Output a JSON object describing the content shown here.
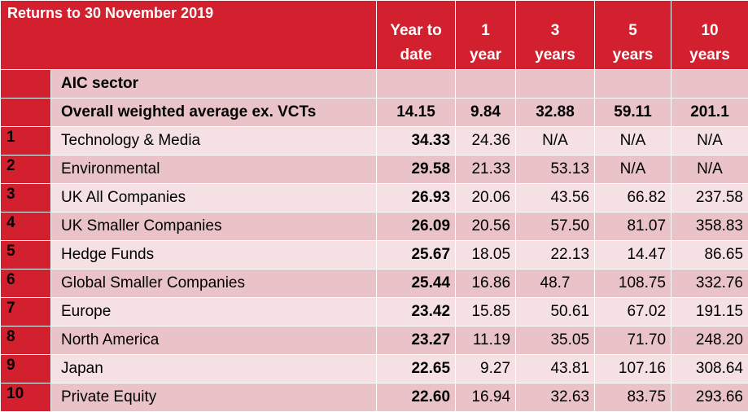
{
  "title": "Returns to 30 November 2019",
  "columns": {
    "ytd": [
      "Year to",
      "date"
    ],
    "y1": [
      "1",
      "year"
    ],
    "y3": [
      "3",
      "years"
    ],
    "y5": [
      "5",
      "years"
    ],
    "y10": [
      "10",
      "years"
    ]
  },
  "sector_label": "AIC sector",
  "overall": {
    "name": "Overall weighted average ex. VCTs",
    "ytd": "14.15",
    "y1": "9.84",
    "y3": "32.88",
    "y5": "59.11",
    "y10": "201.1"
  },
  "rows": [
    {
      "rank": "1",
      "name": "Technology & Media",
      "ytd": "34.33",
      "y1": "24.36",
      "y3": "N/A",
      "y5": "N/A",
      "y10": "N/A"
    },
    {
      "rank": "2",
      "name": "Environmental",
      "ytd": "29.58",
      "y1": "21.33",
      "y3": "53.13",
      "y5": "N/A",
      "y10": "N/A"
    },
    {
      "rank": "3",
      "name": "UK All Companies",
      "ytd": "26.93",
      "y1": "20.06",
      "y3": "43.56",
      "y5": "66.82",
      "y10": "237.58"
    },
    {
      "rank": "4",
      "name": "UK Smaller Companies",
      "ytd": "26.09",
      "y1": "20.56",
      "y3": "57.50",
      "y5": "81.07",
      "y10": "358.83"
    },
    {
      "rank": "5",
      "name": "Hedge Funds",
      "ytd": "25.67",
      "y1": "18.05",
      "y3": "22.13",
      "y5": "14.47",
      "y10": "86.65"
    },
    {
      "rank": "6",
      "name": "Global Smaller Companies",
      "ytd": "25.44",
      "y1": "16.86",
      "y3": "48.7",
      "y5": "108.75",
      "y10": "332.76"
    },
    {
      "rank": "7",
      "name": "Europe",
      "ytd": "23.42",
      "y1": "15.85",
      "y3": "50.61",
      "y5": "67.02",
      "y10": "191.15"
    },
    {
      "rank": "8",
      "name": "North America",
      "ytd": "23.27",
      "y1": "11.19",
      "y3": "35.05",
      "y5": "71.70",
      "y10": "248.20"
    },
    {
      "rank": "9",
      "name": "Japan",
      "ytd": "22.65",
      "y1": "9.27",
      "y3": "43.81",
      "y5": "107.16",
      "y10": "308.64"
    },
    {
      "rank": "10",
      "name": "Private Equity",
      "ytd": "22.60",
      "y1": "16.94",
      "y3": "32.63",
      "y5": "83.75",
      "y10": "293.66"
    }
  ],
  "colors": {
    "header_red": "#d2202f",
    "row_dark": "#e9c3c8",
    "row_light": "#f5e1e3"
  }
}
